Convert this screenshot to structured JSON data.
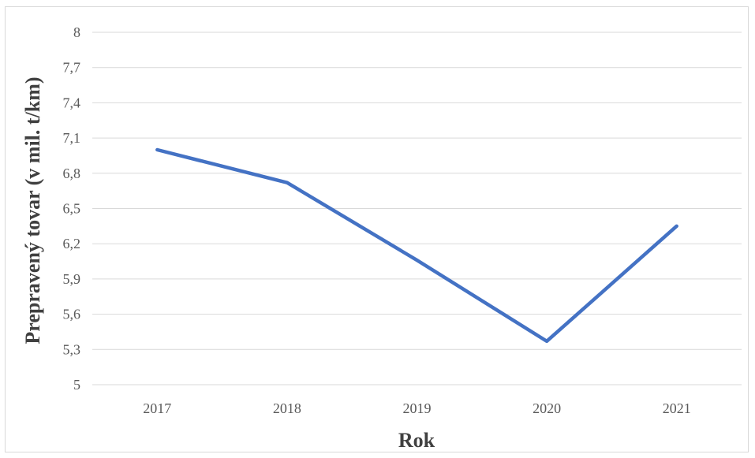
{
  "chart_data": {
    "type": "line",
    "categories": [
      "2017",
      "2018",
      "2019",
      "2020",
      "2021"
    ],
    "series": [
      {
        "values": [
          7.0,
          6.72,
          6.06,
          5.37,
          6.35
        ]
      }
    ],
    "title": "",
    "xlabel": "Rok",
    "ylabel": "Prepravený tovar (v mil. t/km)",
    "ylim": [
      5,
      8
    ],
    "yticks": [
      "5",
      "5,3",
      "5,6",
      "5,9",
      "6,2",
      "6,5",
      "6,8",
      "7,1",
      "7,4",
      "7,7",
      "8"
    ],
    "grid": "horizontal",
    "line_color": "#4472c4",
    "grid_color": "#d9d9d9"
  }
}
